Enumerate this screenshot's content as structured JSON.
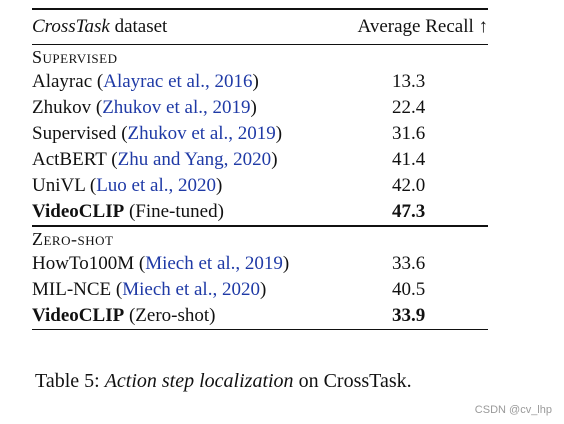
{
  "table": {
    "header": {
      "dataset_name": "CrossTask",
      "dataset_suffix": " dataset",
      "metric": "Average Recall ↑"
    },
    "sections": [
      {
        "title": "Supervised",
        "rows": [
          {
            "method": "Alayrac",
            "citation": "Alayrac et al., 2016",
            "score": "13.3",
            "bold": false
          },
          {
            "method": "Zhukov",
            "citation": "Zhukov et al., 2019",
            "score": "22.4",
            "bold": false
          },
          {
            "method": "Supervised",
            "citation": "Zhukov et al., 2019",
            "score": "31.6",
            "bold": false
          },
          {
            "method": "ActBERT",
            "citation": "Zhu and Yang, 2020",
            "score": "41.4",
            "bold": false
          },
          {
            "method": "UniVL",
            "citation": "Luo et al., 2020",
            "score": "42.0",
            "bold": false
          },
          {
            "method": "VideoCLIP",
            "variant": "(Fine-tuned)",
            "score": "47.3",
            "bold": true
          }
        ]
      },
      {
        "title": "Zero-shot",
        "rows": [
          {
            "method": "HowTo100M",
            "citation": "Miech et al., 2019",
            "score": "33.6",
            "bold": false
          },
          {
            "method": "MIL-NCE",
            "citation": "Miech et al., 2020",
            "score": "40.5",
            "bold": false
          },
          {
            "method": "VideoCLIP",
            "variant": "(Zero-shot)",
            "score": "33.9",
            "bold": true
          }
        ]
      }
    ]
  },
  "caption": {
    "label": "Table 5: ",
    "title_italic": "Action step localization",
    "title_rest": " on CrossTask."
  },
  "watermark": "CSDN @cv_lhp",
  "colors": {
    "citation": "#1f3aa6",
    "text": "#111111",
    "watermark": "#9a9a9a"
  }
}
